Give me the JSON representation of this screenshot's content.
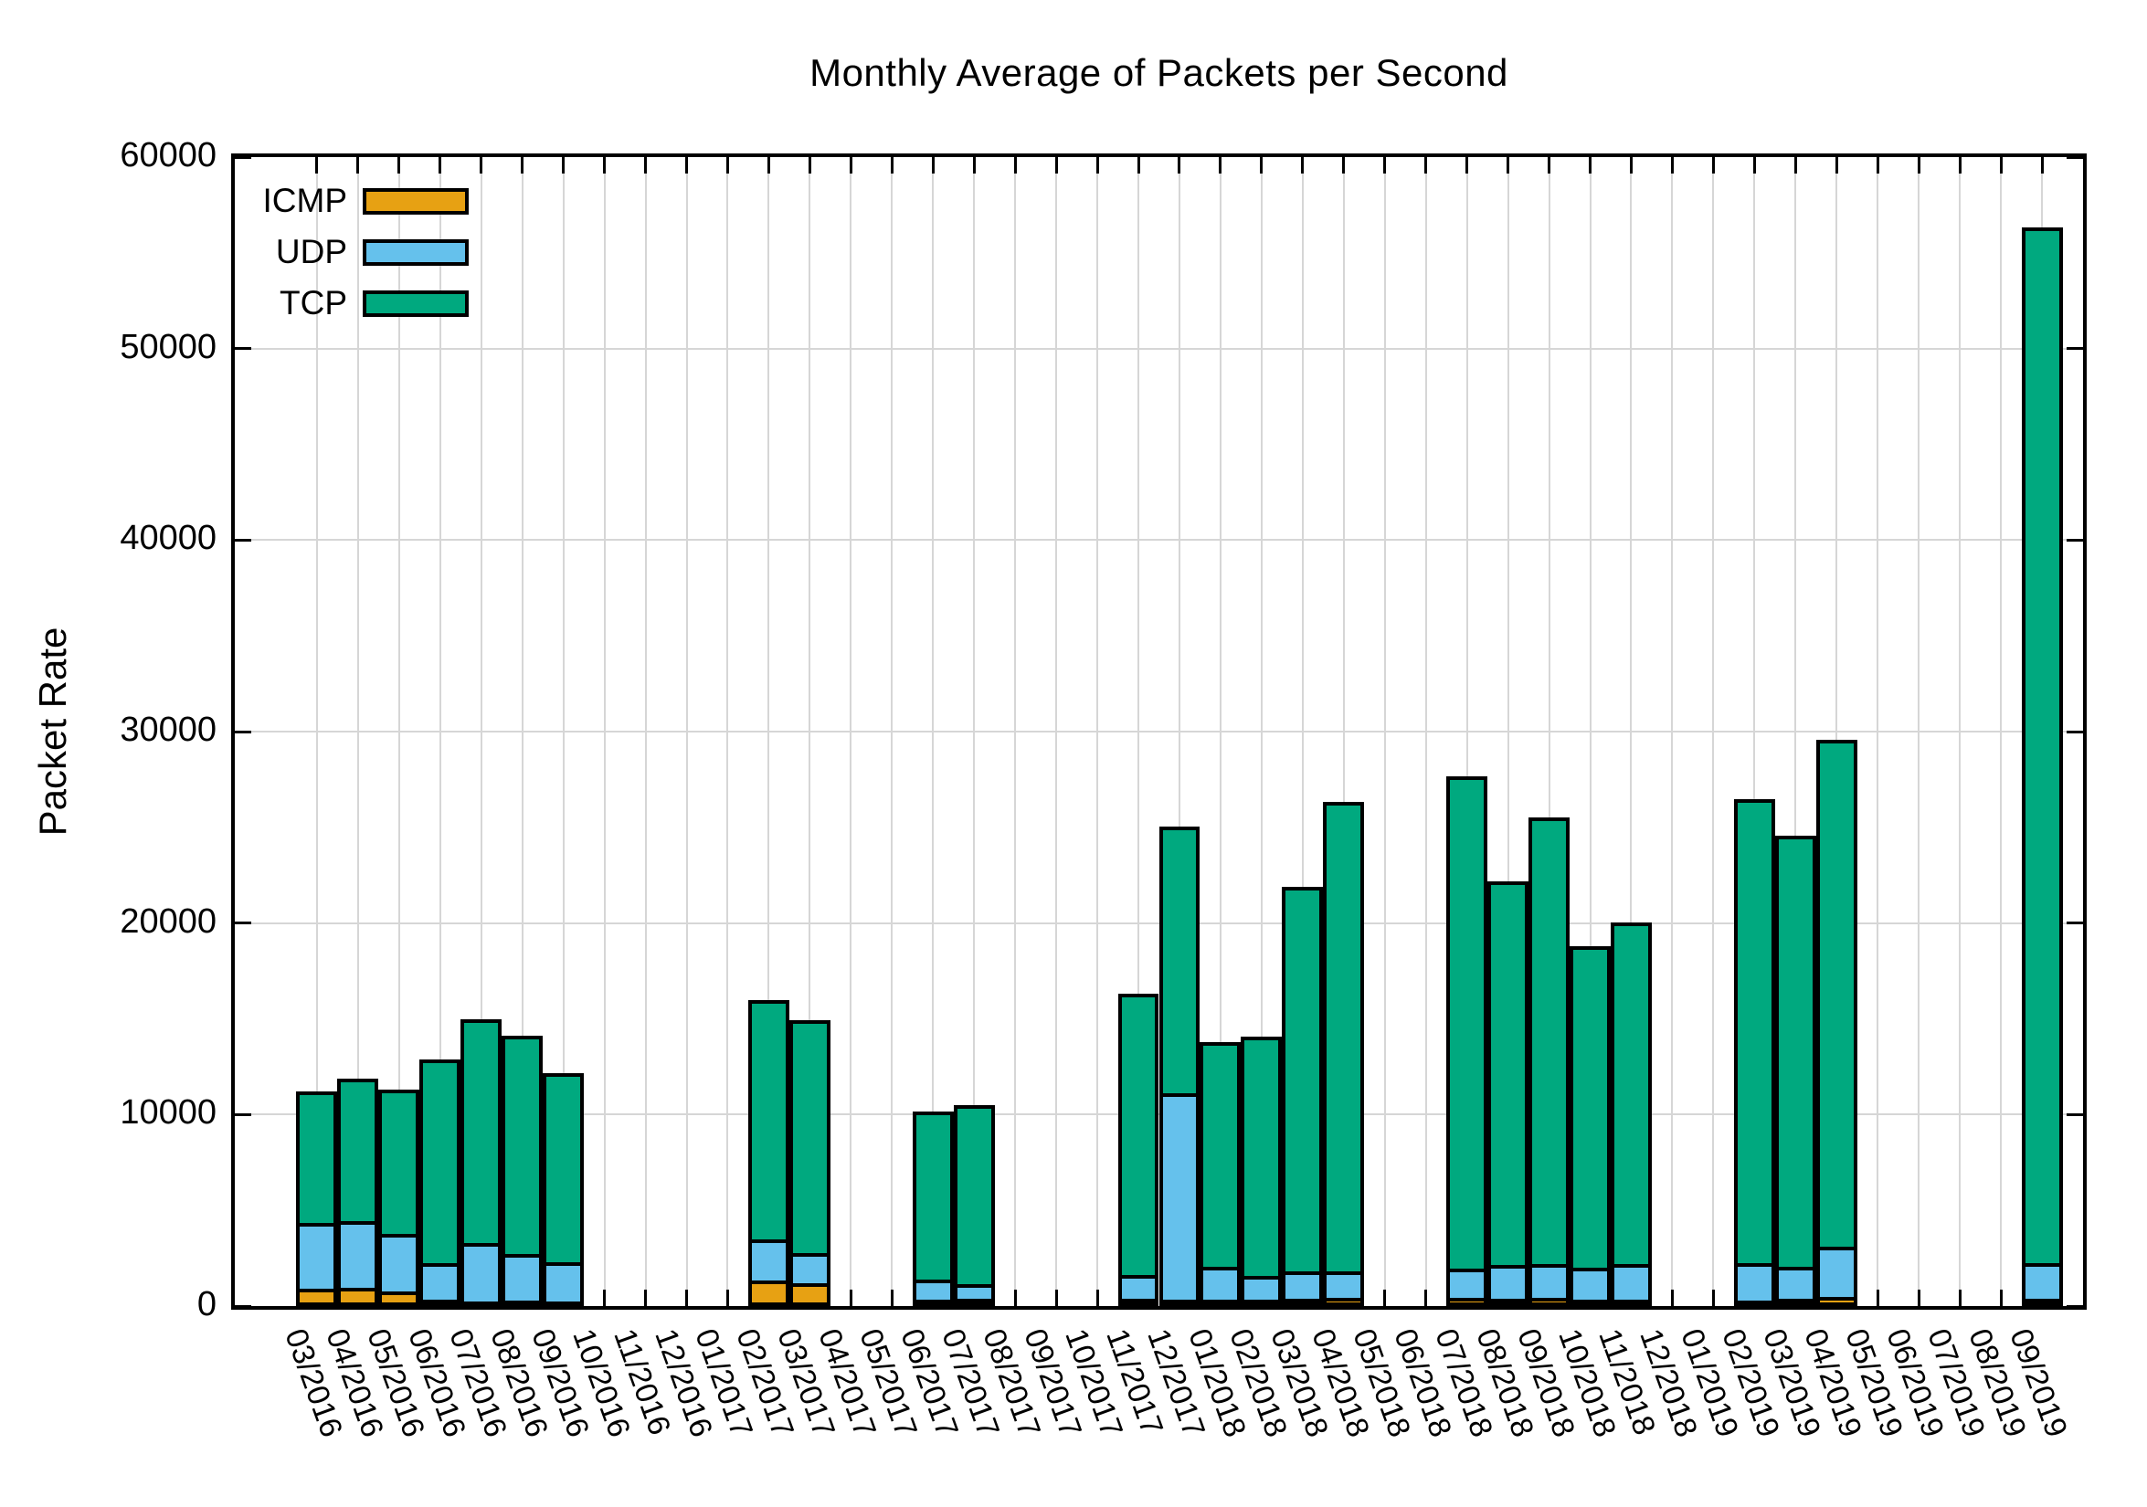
{
  "title": "Monthly Average of Packets per Second",
  "ylabel": "Packet Rate",
  "legend": [
    {
      "label": "ICMP",
      "color": "#E7A113"
    },
    {
      "label": "UDP",
      "color": "#65C1EC"
    },
    {
      "label": "TCP",
      "color": "#00A97F"
    }
  ],
  "chart_data": {
    "type": "bar",
    "stacked": true,
    "title": "Monthly Average of Packets per Second",
    "xlabel": "",
    "ylabel": "Packet Rate",
    "ylim": [
      0,
      60000
    ],
    "yticks": [
      0,
      10000,
      20000,
      30000,
      40000,
      50000,
      60000
    ],
    "grid": true,
    "legend_position": "top-left",
    "categories": [
      "03/2016",
      "04/2016",
      "05/2016",
      "06/2016",
      "07/2016",
      "08/2016",
      "09/2016",
      "10/2016",
      "11/2016",
      "12/2016",
      "01/2017",
      "02/2017",
      "03/2017",
      "04/2017",
      "05/2017",
      "06/2017",
      "07/2017",
      "08/2017",
      "09/2017",
      "10/2017",
      "11/2017",
      "12/2017",
      "01/2018",
      "02/2018",
      "03/2018",
      "04/2018",
      "05/2018",
      "06/2018",
      "07/2018",
      "08/2018",
      "09/2018",
      "10/2018",
      "11/2018",
      "12/2018",
      "01/2019",
      "02/2019",
      "03/2019",
      "04/2019",
      "05/2019",
      "06/2019",
      "07/2019",
      "08/2019",
      "09/2019"
    ],
    "series": [
      {
        "name": "ICMP",
        "color": "#E7A113",
        "values": [
          910,
          960,
          770,
          340,
          240,
          290,
          240,
          null,
          null,
          null,
          null,
          1340,
          1200,
          null,
          null,
          340,
          380,
          null,
          null,
          null,
          380,
          340,
          340,
          340,
          380,
          450,
          null,
          null,
          450,
          380,
          450,
          340,
          340,
          null,
          null,
          290,
          380,
          480,
          null,
          null,
          null,
          null,
          380
        ]
      },
      {
        "name": "UDP",
        "color": "#65C1EC",
        "values": [
          3440,
          3490,
          3010,
          1910,
          3060,
          2440,
          2060,
          null,
          null,
          null,
          null,
          2150,
          1580,
          null,
          null,
          1050,
          770,
          null,
          null,
          null,
          1250,
          10760,
          1720,
          1250,
          1410,
          1340,
          null,
          null,
          1500,
          1770,
          1750,
          1670,
          1860,
          null,
          null,
          1960,
          1680,
          2630,
          null,
          null,
          null,
          null,
          1870
        ]
      },
      {
        "name": "TCP",
        "color": "#00A97F",
        "values": [
          6850,
          7410,
          7510,
          10620,
          11680,
          11380,
          9850,
          null,
          null,
          null,
          null,
          12490,
          12150,
          null,
          null,
          8750,
          9330,
          null,
          null,
          null,
          14690,
          13930,
          11710,
          12470,
          20080,
          24530,
          null,
          null,
          25710,
          20050,
          23300,
          16800,
          17850,
          null,
          null,
          24200,
          22490,
          26440,
          null,
          null,
          null,
          null,
          54100
        ]
      }
    ],
    "totals": [
      11200,
      11860,
      11290,
      12870,
      14980,
      14110,
      12150,
      null,
      null,
      null,
      null,
      15980,
      14930,
      null,
      null,
      10140,
      10480,
      null,
      null,
      null,
      16320,
      25030,
      13770,
      14060,
      21870,
      26320,
      null,
      null,
      27660,
      22200,
      25500,
      18810,
      20050,
      null,
      null,
      26450,
      24550,
      29550,
      null,
      null,
      null,
      null,
      56350
    ]
  }
}
